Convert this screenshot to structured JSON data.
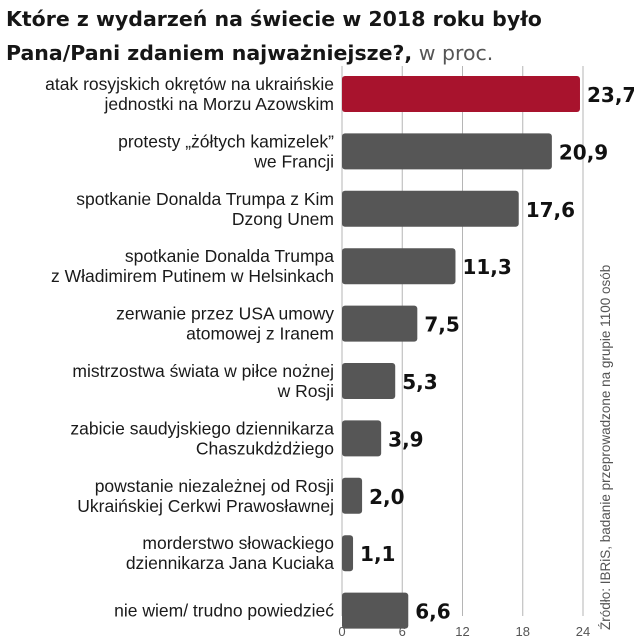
{
  "title_bold": "Które z wydarzeń na świecie w 2018 roku było Pana/Pani zdaniem najważniejsze?,",
  "title_unit": " w proc.",
  "source": "Źródło: IBRiS, badanie przeprowadzone na grupie 1100 osób",
  "colors": {
    "highlight": "#a8132d",
    "bar": "#565656",
    "grid": "#b5b5b5"
  },
  "chart_data": {
    "type": "bar",
    "orientation": "horizontal",
    "categories": [
      [
        "atak rosyjskich okrętów na ukraińskie",
        "jednostki na Morzu Azowskim"
      ],
      [
        "protesty „żółtych kamizelek”",
        "we Francji"
      ],
      [
        "spotkanie Donalda Trumpa z Kim",
        "Dzong Unem"
      ],
      [
        "spotkanie Donalda Trumpa",
        "z Władimirem Putinem w Helsinkach"
      ],
      [
        "zerwanie przez USA umowy",
        "atomowej z Iranem"
      ],
      [
        "mistrzostwa świata w piłce nożnej",
        "w Rosji"
      ],
      [
        "zabicie saudyjskiego dziennikarza",
        "Chaszukdżdżiego"
      ],
      [
        "powstanie niezależnej od Rosji",
        "Ukraińskiej Cerkwi Prawosławnej"
      ],
      [
        "morderstwo słowackiego",
        "dziennikarza Jana Kuciaka"
      ],
      [
        "nie wiem/ trudno powiedzieć"
      ]
    ],
    "values": [
      23.7,
      20.9,
      17.6,
      11.3,
      7.5,
      5.3,
      3.9,
      2.0,
      1.1,
      6.6
    ],
    "value_labels": [
      "23,7",
      "20,9",
      "17,6",
      "11,3",
      "7,5",
      "5,3",
      "3,9",
      "2,0",
      "1,1",
      "6,6"
    ],
    "highlight_index": 0,
    "xlim": [
      0,
      24
    ],
    "xticks": [
      0,
      6,
      12,
      18,
      24
    ],
    "grid": true
  }
}
